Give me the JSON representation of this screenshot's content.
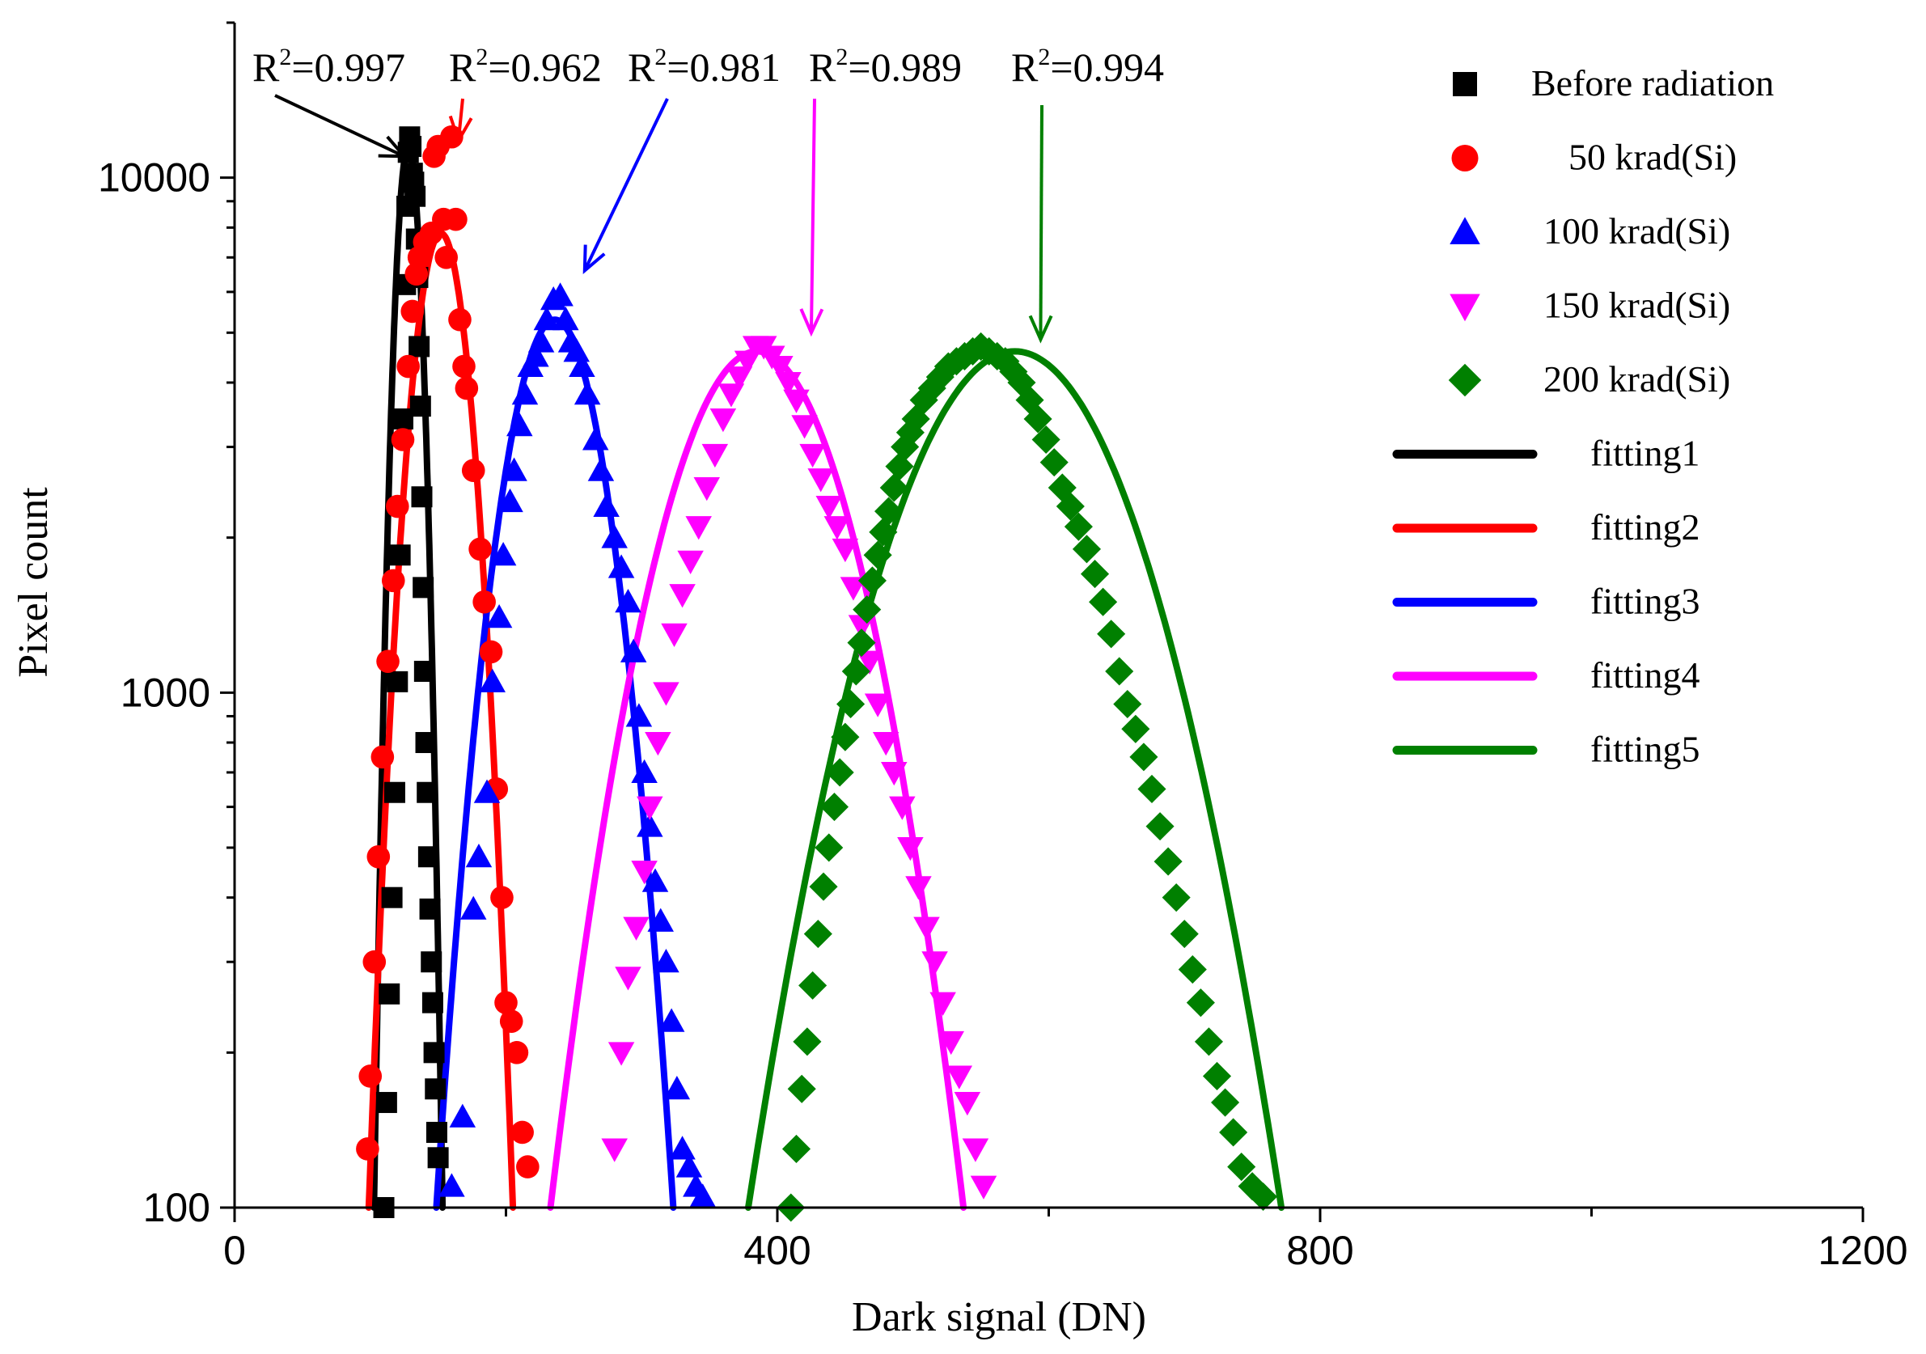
{
  "chart_data": {
    "type": "scatter",
    "title": "",
    "xlabel": "Dark signal (DN)",
    "ylabel": "Pixel count",
    "x_range": [
      0,
      1200
    ],
    "y_range": [
      100,
      20000
    ],
    "y_scale": "log",
    "x_ticks": [
      0,
      400,
      800,
      1200
    ],
    "x_tick_labels": [
      "0",
      "400",
      "800",
      "1200"
    ],
    "y_ticks": [
      100,
      1000,
      10000
    ],
    "y_tick_labels": [
      "100",
      "1000",
      "10000"
    ],
    "legend_position": "top-right",
    "series": [
      {
        "name": "Before radiation",
        "marker": "square",
        "color": "#000000",
        "fit_name": "fitting1",
        "r2_label": "R²=0.997",
        "r2_label_parts": {
          "base": "R",
          "sup": "2",
          "rest": "=0.997"
        },
        "fit": {
          "mu": 128,
          "sigma": 8.2,
          "amp": 11500
        },
        "points": [
          [
            110,
            100
          ],
          [
            112,
            160
          ],
          [
            114,
            260
          ],
          [
            116,
            400
          ],
          [
            118,
            640
          ],
          [
            120,
            1050
          ],
          [
            122,
            1850
          ],
          [
            124,
            3400
          ],
          [
            126,
            6200
          ],
          [
            127,
            8800
          ],
          [
            128,
            11200
          ],
          [
            129,
            12000
          ],
          [
            130,
            11500
          ],
          [
            131,
            10200
          ],
          [
            132,
            9800
          ],
          [
            133,
            9200
          ],
          [
            134,
            7600
          ],
          [
            135,
            6400
          ],
          [
            136,
            4700
          ],
          [
            137,
            3600
          ],
          [
            138,
            2400
          ],
          [
            139,
            1600
          ],
          [
            140,
            1100
          ],
          [
            141,
            800
          ],
          [
            142,
            640
          ],
          [
            143,
            480
          ],
          [
            144,
            380
          ],
          [
            145,
            300
          ],
          [
            146,
            250
          ],
          [
            147,
            200
          ],
          [
            148,
            170
          ],
          [
            149,
            140
          ],
          [
            150,
            125
          ]
        ]
      },
      {
        "name": "50 krad(Si)",
        "marker": "circle",
        "color": "#ff0000",
        "fit_name": "fitting2",
        "r2_label": "R²=0.962",
        "r2_label_parts": {
          "base": "R",
          "sup": "2",
          "rest": "=0.962"
        },
        "fit": {
          "mu": 152,
          "sigma": 18,
          "amp": 7800
        },
        "points": [
          [
            98,
            130
          ],
          [
            100,
            180
          ],
          [
            103,
            300
          ],
          [
            106,
            480
          ],
          [
            109,
            750
          ],
          [
            113,
            1150
          ],
          [
            117,
            1650
          ],
          [
            120,
            2300
          ],
          [
            124,
            3100
          ],
          [
            128,
            4300
          ],
          [
            131,
            5500
          ],
          [
            134,
            6500
          ],
          [
            136,
            7000
          ],
          [
            140,
            7500
          ],
          [
            145,
            7800
          ],
          [
            147,
            11000
          ],
          [
            150,
            11500
          ],
          [
            154,
            8300
          ],
          [
            156,
            7000
          ],
          [
            160,
            12000
          ],
          [
            163,
            8300
          ],
          [
            166,
            5300
          ],
          [
            169,
            4300
          ],
          [
            171,
            3900
          ],
          [
            176,
            2700
          ],
          [
            181,
            1900
          ],
          [
            184,
            1500
          ],
          [
            189,
            1200
          ],
          [
            193,
            650
          ],
          [
            197,
            400
          ],
          [
            200,
            250
          ],
          [
            204,
            230
          ],
          [
            208,
            200
          ],
          [
            212,
            140
          ],
          [
            216,
            120
          ]
        ]
      },
      {
        "name": "100 krad(Si)",
        "marker": "triangle-up",
        "color": "#0000ff",
        "fit_name": "fitting3",
        "r2_label": "R²=0.981",
        "r2_label_parts": {
          "base": "R",
          "sup": "2",
          "rest": "=0.981"
        },
        "fit": {
          "mu": 236,
          "sigma": 31,
          "amp": 5300
        },
        "points": [
          [
            160,
            110
          ],
          [
            168,
            150
          ],
          [
            176,
            380
          ],
          [
            180,
            480
          ],
          [
            186,
            640
          ],
          [
            190,
            1050
          ],
          [
            195,
            1400
          ],
          [
            198,
            1850
          ],
          [
            203,
            2350
          ],
          [
            206,
            2700
          ],
          [
            210,
            3300
          ],
          [
            214,
            3800
          ],
          [
            218,
            4300
          ],
          [
            222,
            4500
          ],
          [
            226,
            4800
          ],
          [
            230,
            5300
          ],
          [
            235,
            5800
          ],
          [
            240,
            5900
          ],
          [
            244,
            5300
          ],
          [
            248,
            4800
          ],
          [
            252,
            4600
          ],
          [
            256,
            4300
          ],
          [
            260,
            3800
          ],
          [
            266,
            3100
          ],
          [
            270,
            2700
          ],
          [
            274,
            2300
          ],
          [
            280,
            2000
          ],
          [
            285,
            1750
          ],
          [
            290,
            1500
          ],
          [
            294,
            1200
          ],
          [
            298,
            900
          ],
          [
            302,
            700
          ],
          [
            306,
            550
          ],
          [
            310,
            430
          ],
          [
            314,
            360
          ],
          [
            318,
            300
          ],
          [
            322,
            230
          ],
          [
            326,
            170
          ],
          [
            330,
            130
          ],
          [
            335,
            120
          ],
          [
            340,
            110
          ],
          [
            345,
            105
          ]
        ]
      },
      {
        "name": "150 krad(Si)",
        "marker": "triangle-down",
        "color": "#ff00ff",
        "fit_name": "fitting4",
        "r2_label": "R²=0.989",
        "r2_label_parts": {
          "base": "R",
          "sup": "2",
          "rest": "=0.989"
        },
        "fit": {
          "mu": 385,
          "sigma": 55,
          "amp": 4600
        },
        "points": [
          [
            280,
            130
          ],
          [
            285,
            200
          ],
          [
            290,
            280
          ],
          [
            296,
            350
          ],
          [
            302,
            450
          ],
          [
            306,
            600
          ],
          [
            312,
            800
          ],
          [
            318,
            1000
          ],
          [
            324,
            1300
          ],
          [
            330,
            1550
          ],
          [
            336,
            1800
          ],
          [
            342,
            2100
          ],
          [
            348,
            2500
          ],
          [
            354,
            2900
          ],
          [
            360,
            3400
          ],
          [
            366,
            3800
          ],
          [
            372,
            4100
          ],
          [
            378,
            4400
          ],
          [
            384,
            4700
          ],
          [
            390,
            4700
          ],
          [
            396,
            4500
          ],
          [
            402,
            4300
          ],
          [
            408,
            4000
          ],
          [
            414,
            3700
          ],
          [
            420,
            3300
          ],
          [
            426,
            2900
          ],
          [
            432,
            2600
          ],
          [
            438,
            2300
          ],
          [
            444,
            2100
          ],
          [
            450,
            1900
          ],
          [
            456,
            1600
          ],
          [
            462,
            1350
          ],
          [
            468,
            1150
          ],
          [
            474,
            950
          ],
          [
            480,
            800
          ],
          [
            486,
            700
          ],
          [
            492,
            600
          ],
          [
            498,
            500
          ],
          [
            504,
            420
          ],
          [
            510,
            350
          ],
          [
            516,
            300
          ],
          [
            522,
            250
          ],
          [
            528,
            210
          ],
          [
            534,
            180
          ],
          [
            540,
            160
          ],
          [
            546,
            130
          ],
          [
            552,
            110
          ]
        ]
      },
      {
        "name": "200 krad(Si)",
        "marker": "diamond",
        "color": "#008000",
        "fit_name": "fitting5",
        "r2_label": "R²=0.994",
        "r2_label_parts": {
          "base": "R",
          "sup": "2",
          "rest": "=0.994"
        },
        "fit": {
          "mu": 575,
          "sigma": 71,
          "amp": 4600
        },
        "points": [
          [
            410,
            100
          ],
          [
            414,
            130
          ],
          [
            418,
            170
          ],
          [
            422,
            210
          ],
          [
            426,
            270
          ],
          [
            430,
            340
          ],
          [
            434,
            420
          ],
          [
            438,
            500
          ],
          [
            442,
            600
          ],
          [
            446,
            700
          ],
          [
            450,
            820
          ],
          [
            454,
            950
          ],
          [
            458,
            1100
          ],
          [
            462,
            1250
          ],
          [
            466,
            1450
          ],
          [
            470,
            1650
          ],
          [
            474,
            1850
          ],
          [
            478,
            2050
          ],
          [
            482,
            2250
          ],
          [
            486,
            2500
          ],
          [
            490,
            2750
          ],
          [
            494,
            3000
          ],
          [
            498,
            3200
          ],
          [
            502,
            3400
          ],
          [
            508,
            3700
          ],
          [
            514,
            3900
          ],
          [
            520,
            4100
          ],
          [
            526,
            4300
          ],
          [
            532,
            4400
          ],
          [
            538,
            4500
          ],
          [
            544,
            4600
          ],
          [
            550,
            4700
          ],
          [
            556,
            4600
          ],
          [
            562,
            4500
          ],
          [
            568,
            4400
          ],
          [
            574,
            4200
          ],
          [
            580,
            4000
          ],
          [
            586,
            3700
          ],
          [
            592,
            3400
          ],
          [
            598,
            3100
          ],
          [
            604,
            2800
          ],
          [
            610,
            2500
          ],
          [
            616,
            2300
          ],
          [
            622,
            2100
          ],
          [
            628,
            1900
          ],
          [
            634,
            1700
          ],
          [
            640,
            1500
          ],
          [
            646,
            1300
          ],
          [
            652,
            1100
          ],
          [
            658,
            950
          ],
          [
            664,
            850
          ],
          [
            670,
            750
          ],
          [
            676,
            650
          ],
          [
            682,
            550
          ],
          [
            688,
            470
          ],
          [
            694,
            400
          ],
          [
            700,
            340
          ],
          [
            706,
            290
          ],
          [
            712,
            250
          ],
          [
            718,
            210
          ],
          [
            724,
            180
          ],
          [
            730,
            160
          ],
          [
            736,
            140
          ],
          [
            742,
            120
          ],
          [
            750,
            110
          ],
          [
            758,
            105
          ]
        ]
      }
    ]
  }
}
